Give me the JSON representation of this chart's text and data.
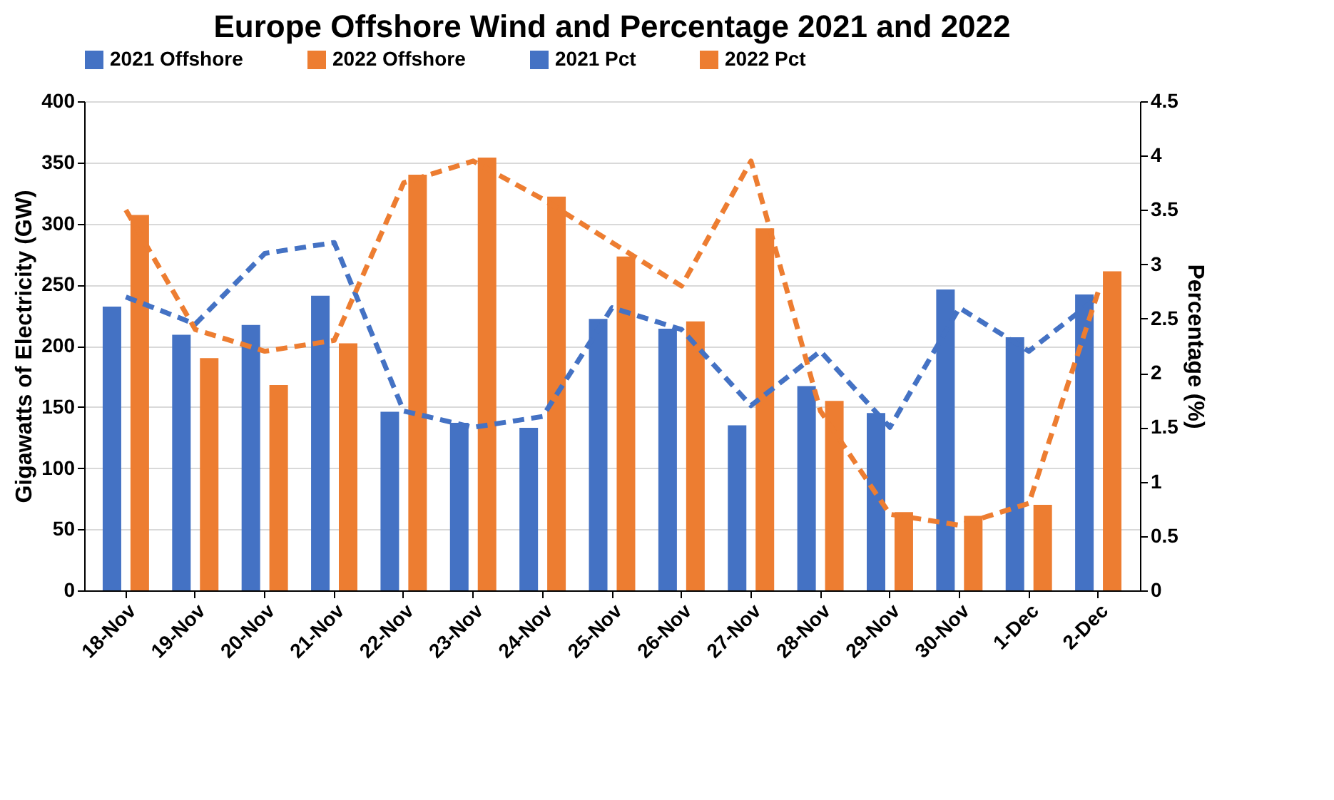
{
  "chart_data": {
    "type": "bar",
    "title": "Europe Offshore Wind and Percentage 2021 and 2022",
    "categories": [
      "18-Nov",
      "19-Nov",
      "20-Nov",
      "21-Nov",
      "22-Nov",
      "23-Nov",
      "24-Nov",
      "25-Nov",
      "26-Nov",
      "27-Nov",
      "28-Nov",
      "29-Nov",
      "30-Nov",
      "1-Dec",
      "2-Dec"
    ],
    "ylabel": "Gigawatts of Electricity (GW)",
    "y2label": "Percentage (%)",
    "ylim": [
      0,
      400
    ],
    "yticks": [
      0,
      50,
      100,
      150,
      200,
      250,
      300,
      350,
      400
    ],
    "y2lim": [
      0,
      4.5
    ],
    "y2ticks": [
      0,
      0.5,
      1,
      1.5,
      2,
      2.5,
      3,
      3.5,
      4,
      4.5
    ],
    "grid": "y",
    "legend": "top",
    "series": [
      {
        "name": "2021 Offshore",
        "color": "#4472c4",
        "values": [
          232,
          209,
          217,
          241,
          146,
          137,
          133,
          222,
          214,
          135,
          167,
          145,
          246,
          207,
          242
        ]
      },
      {
        "name": "2022 Offshore",
        "color": "#ed7d31",
        "values": [
          307,
          190,
          168,
          202,
          340,
          354,
          322,
          273,
          220,
          296,
          155,
          64,
          61,
          70,
          261
        ]
      },
      {
        "name": "2021 Pct",
        "type": "line",
        "axis": "y2",
        "line_style": "dashed",
        "color": "#4472c4",
        "values": [
          2.7,
          2.45,
          3.1,
          3.2,
          1.65,
          1.5,
          1.6,
          2.6,
          2.4,
          1.7,
          2.2,
          1.5,
          2.6,
          2.2,
          2.7
        ]
      },
      {
        "name": "2022 Pct",
        "type": "line",
        "axis": "y2",
        "line_style": "dashed",
        "color": "#ed7d31",
        "values": [
          3.5,
          2.4,
          2.2,
          2.3,
          3.75,
          3.95,
          3.6,
          3.2,
          2.8,
          3.95,
          1.65,
          0.7,
          0.6,
          0.8,
          2.75
        ]
      }
    ]
  }
}
